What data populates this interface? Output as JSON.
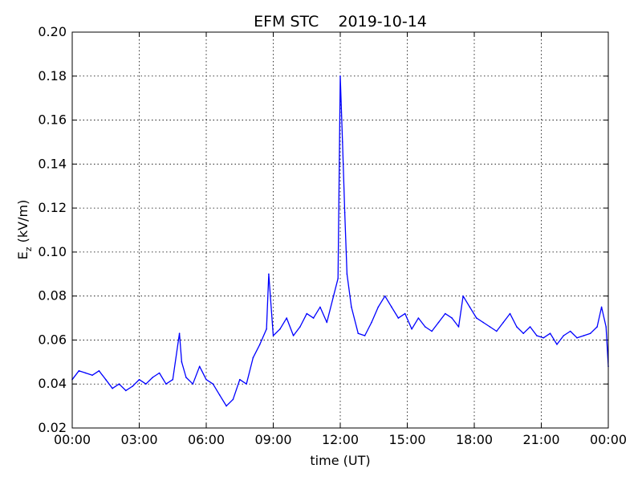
{
  "chart_data": {
    "type": "line",
    "title": "EFM STC    2019-10-14",
    "xlabel": "time (UT)",
    "ylabel_main": "E",
    "ylabel_sub": "z",
    "ylabel_unit": " (kV/m)",
    "x_tick_labels": [
      "00:00",
      "03:00",
      "06:00",
      "09:00",
      "12:00",
      "15:00",
      "18:00",
      "21:00",
      "00:00"
    ],
    "y_tick_labels": [
      "0.02",
      "0.04",
      "0.06",
      "0.08",
      "0.10",
      "0.12",
      "0.14",
      "0.16",
      "0.18",
      "0.20"
    ],
    "xlim_hours": [
      0,
      24
    ],
    "ylim": [
      0.02,
      0.2
    ],
    "grid": true,
    "line_color": "#0000ff",
    "series": [
      {
        "x_hours": [
          0.0,
          0.3,
          0.6,
          0.9,
          1.2,
          1.5,
          1.8,
          2.1,
          2.4,
          2.7,
          3.0,
          3.3,
          3.6,
          3.9,
          4.2,
          4.5,
          4.8,
          4.9,
          5.1,
          5.4,
          5.7,
          6.0,
          6.3,
          6.6,
          6.9,
          7.2,
          7.5,
          7.8,
          8.1,
          8.4,
          8.7,
          8.8,
          9.0,
          9.3,
          9.6,
          9.9,
          10.2,
          10.5,
          10.8,
          11.1,
          11.4,
          11.7,
          11.9,
          12.0,
          12.1,
          12.2,
          12.3,
          12.5,
          12.8,
          13.1,
          13.4,
          13.7,
          14.0,
          14.3,
          14.6,
          14.9,
          15.2,
          15.5,
          15.8,
          16.1,
          16.4,
          16.7,
          17.0,
          17.3,
          17.5,
          17.8,
          18.1,
          18.4,
          18.7,
          19.0,
          19.3,
          19.6,
          19.9,
          20.2,
          20.5,
          20.8,
          21.1,
          21.4,
          21.7,
          22.0,
          22.3,
          22.6,
          22.9,
          23.2,
          23.5,
          23.7,
          23.9,
          24.0
        ],
        "values": [
          0.042,
          0.046,
          0.045,
          0.044,
          0.046,
          0.042,
          0.038,
          0.04,
          0.037,
          0.039,
          0.042,
          0.04,
          0.043,
          0.045,
          0.04,
          0.042,
          0.063,
          0.05,
          0.043,
          0.04,
          0.048,
          0.042,
          0.04,
          0.035,
          0.03,
          0.033,
          0.042,
          0.04,
          0.052,
          0.058,
          0.065,
          0.09,
          0.062,
          0.065,
          0.07,
          0.062,
          0.066,
          0.072,
          0.07,
          0.075,
          0.068,
          0.08,
          0.088,
          0.18,
          0.15,
          0.118,
          0.09,
          0.075,
          0.063,
          0.062,
          0.068,
          0.075,
          0.08,
          0.075,
          0.07,
          0.072,
          0.065,
          0.07,
          0.066,
          0.064,
          0.068,
          0.072,
          0.07,
          0.066,
          0.08,
          0.075,
          0.07,
          0.068,
          0.066,
          0.064,
          0.068,
          0.072,
          0.066,
          0.063,
          0.066,
          0.062,
          0.061,
          0.063,
          0.058,
          0.062,
          0.064,
          0.061,
          0.062,
          0.063,
          0.066,
          0.075,
          0.066,
          0.048
        ]
      }
    ]
  }
}
